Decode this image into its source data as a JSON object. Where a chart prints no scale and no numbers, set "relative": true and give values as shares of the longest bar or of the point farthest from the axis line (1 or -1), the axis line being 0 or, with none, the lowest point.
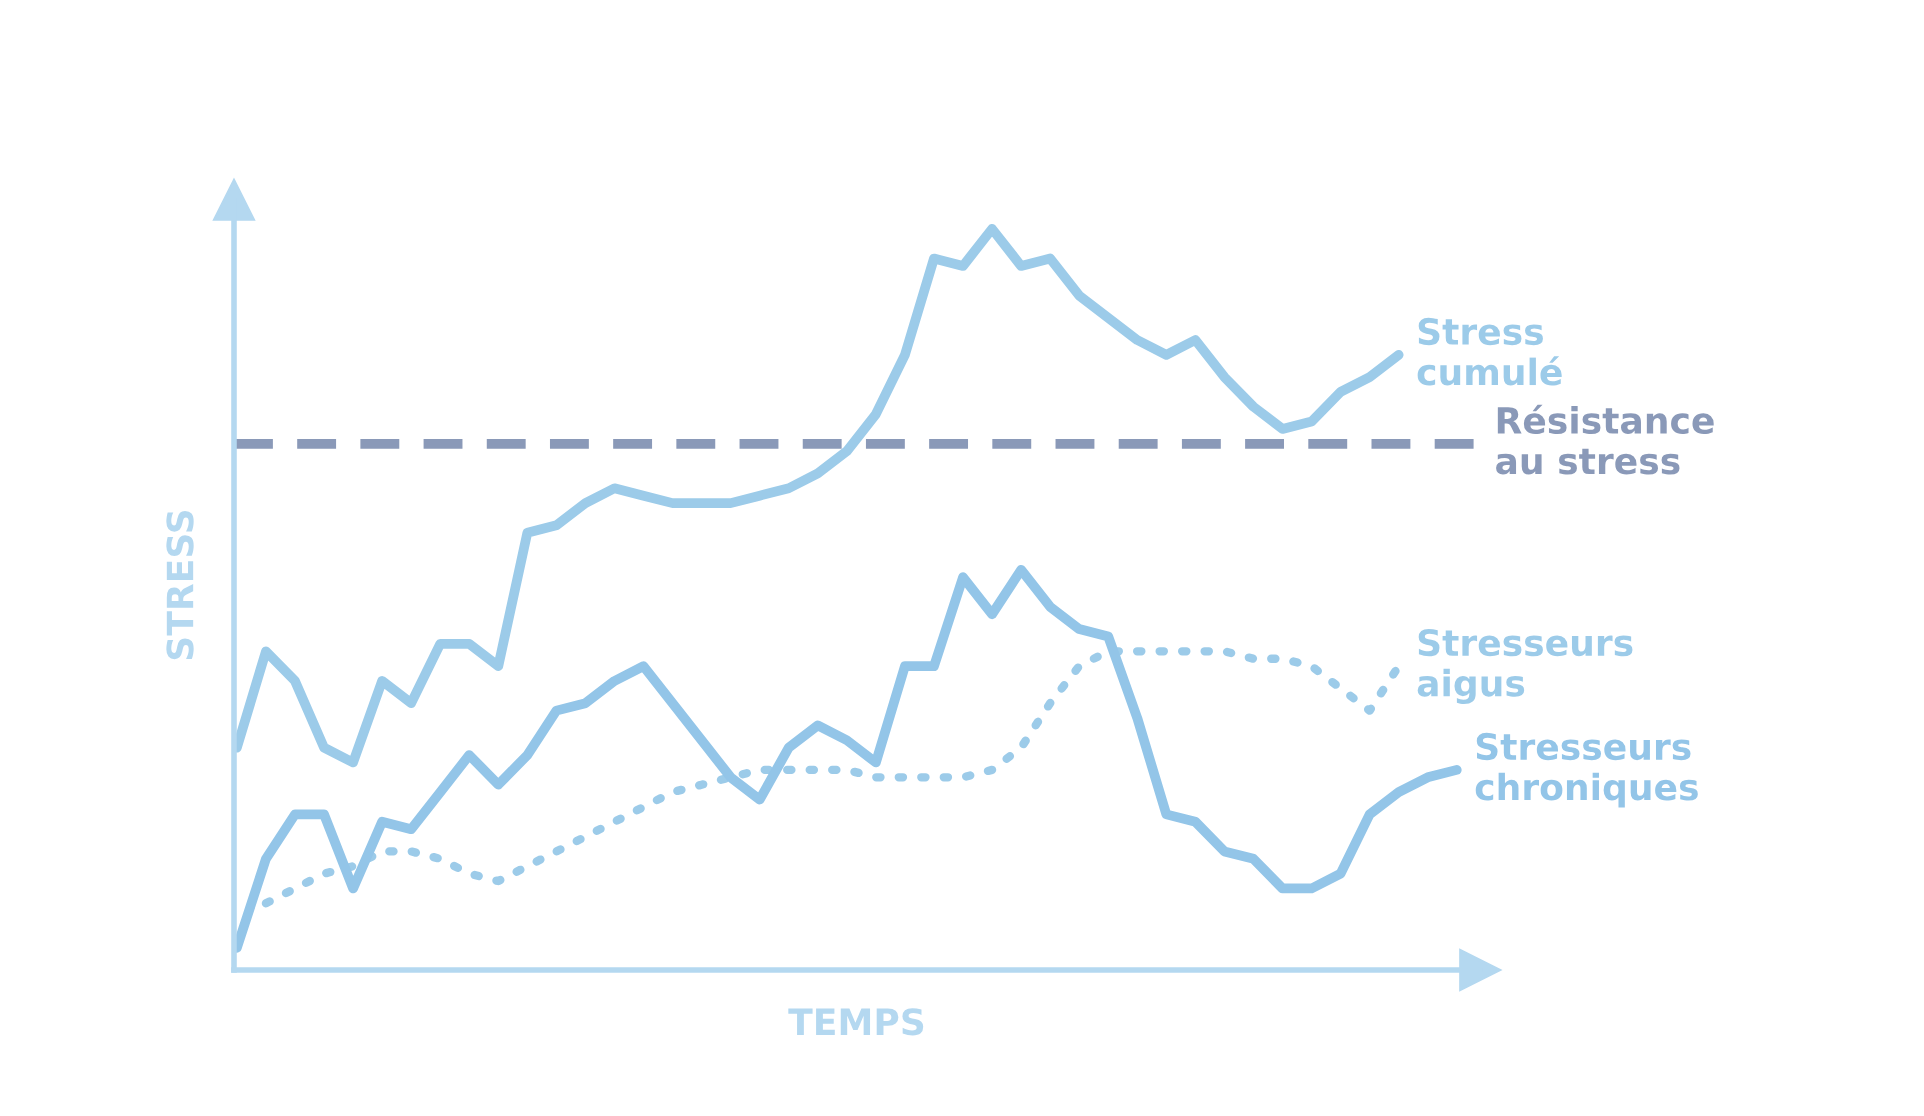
{
  "chart_data": {
    "type": "line",
    "relative": true,
    "xlabel": "TEMPS",
    "ylabel": "STRESS",
    "legend": false,
    "grid": false,
    "categories": [
      null,
      null,
      null,
      null,
      null,
      null,
      null,
      null,
      null,
      null,
      null,
      null,
      null,
      null,
      null,
      null,
      null,
      null,
      null,
      null,
      null,
      null,
      null,
      null,
      null,
      null,
      null,
      null,
      null,
      null,
      null,
      null,
      null,
      null,
      null,
      null,
      null,
      null,
      null,
      null,
      null,
      null,
      null
    ],
    "series": [
      {
        "name": "Stress\ncumulé",
        "color": "#9ccbe9",
        "line_style": "solid",
        "values": [
          0.3,
          0.43,
          0.39,
          0.3,
          0.28,
          0.39,
          0.36,
          0.44,
          0.44,
          0.41,
          0.59,
          0.6,
          0.63,
          0.65,
          0.64,
          0.63,
          0.63,
          0.63,
          0.64,
          0.65,
          0.67,
          0.7,
          0.75,
          0.83,
          0.96,
          0.95,
          1.0,
          0.95,
          0.96,
          0.91,
          0.88,
          0.85,
          0.83,
          0.85,
          0.8,
          0.76,
          0.73,
          0.74,
          0.78,
          0.8,
          0.83,
          null,
          null
        ]
      },
      {
        "name": "Stresseurs\naigus",
        "color": "#9ccbe9",
        "line_style": "dotted",
        "values": [
          null,
          0.09,
          0.11,
          0.13,
          0.14,
          0.16,
          0.16,
          0.15,
          0.13,
          0.12,
          0.14,
          0.16,
          0.18,
          0.2,
          0.22,
          0.24,
          0.25,
          0.26,
          0.27,
          0.27,
          0.27,
          0.27,
          0.26,
          0.26,
          0.26,
          0.26,
          0.27,
          0.3,
          0.36,
          0.41,
          0.43,
          0.43,
          0.43,
          0.43,
          0.43,
          0.42,
          0.42,
          0.41,
          0.38,
          0.35,
          0.41,
          null,
          null
        ]
      },
      {
        "name": "Stresseurs\nchroniques",
        "color": "#93c5e8",
        "line_style": "solid",
        "values": [
          0.03,
          0.15,
          0.21,
          0.21,
          0.11,
          0.2,
          0.19,
          0.24,
          0.29,
          0.25,
          0.29,
          0.35,
          0.36,
          0.39,
          0.41,
          0.36,
          0.31,
          0.26,
          0.23,
          0.3,
          0.33,
          0.31,
          0.28,
          0.41,
          0.41,
          0.53,
          0.48,
          0.54,
          0.49,
          0.46,
          0.45,
          0.34,
          0.21,
          0.2,
          0.16,
          0.15,
          0.11,
          0.11,
          0.13,
          0.21,
          0.24,
          0.26,
          0.27
        ]
      }
    ],
    "ref_lines": [
      {
        "axis": "y",
        "value": 0.71,
        "label": "Résistance\nau stress",
        "color": "#8a99b8",
        "line_style": "dashed"
      }
    ]
  }
}
